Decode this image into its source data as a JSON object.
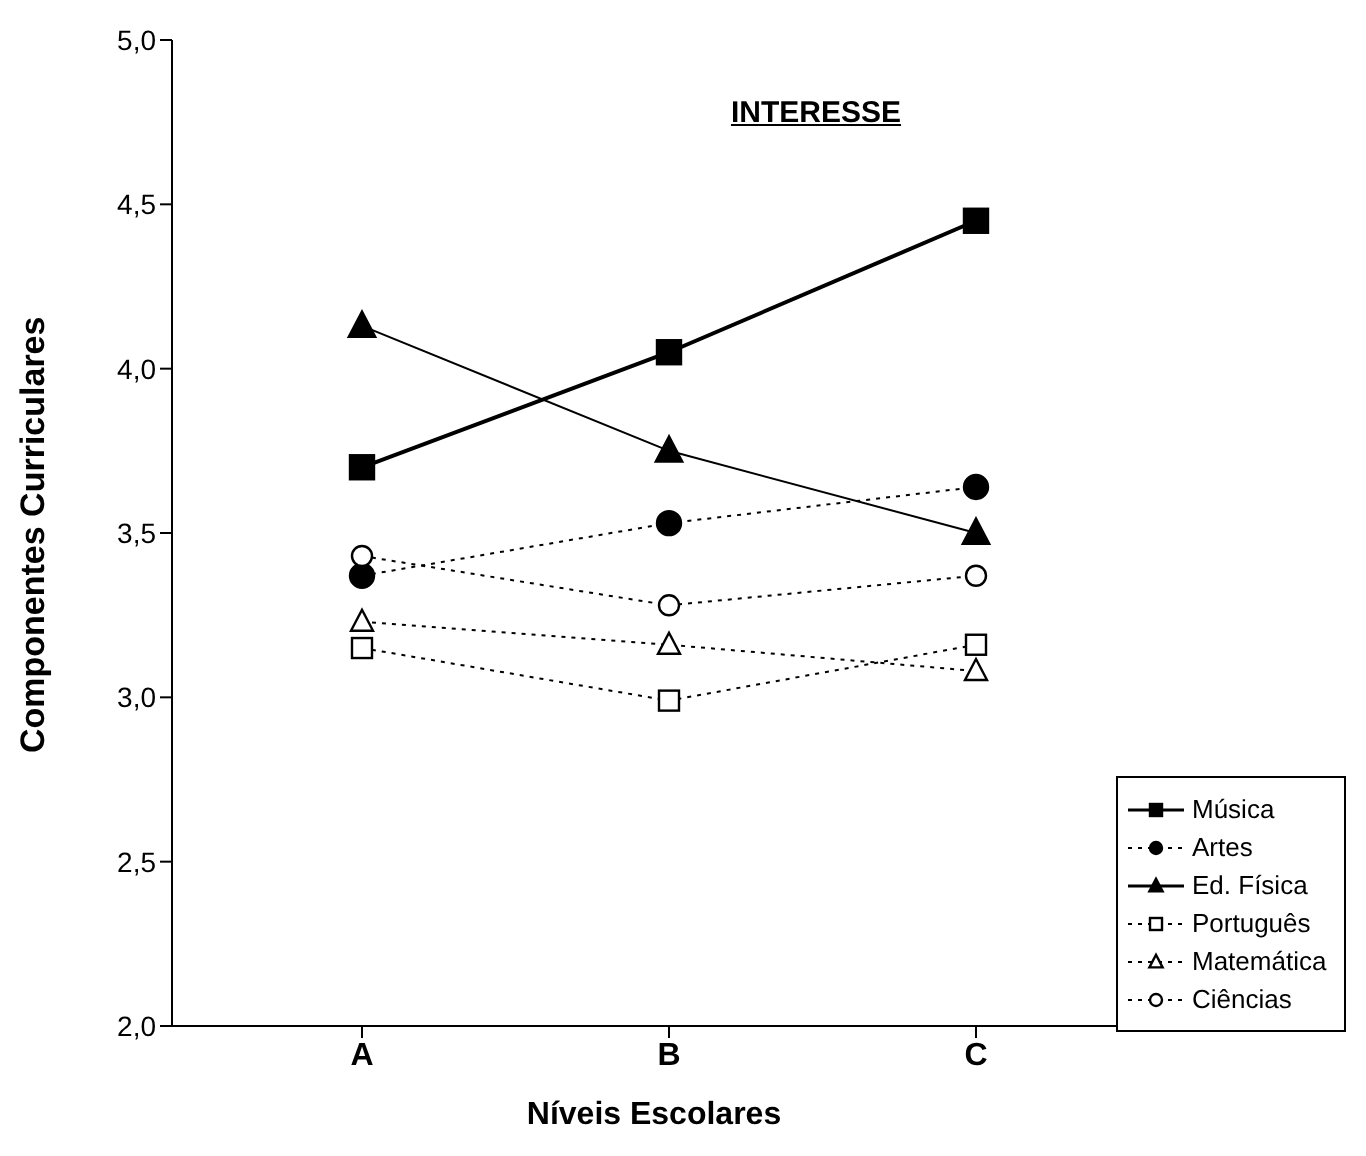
{
  "chart_data": {
    "type": "line",
    "title": "INTERESSE",
    "xlabel": "Níveis Escolares",
    "ylabel": "Componentes Curriculares",
    "categories": [
      "A",
      "B",
      "C"
    ],
    "series": [
      {
        "name": "Música",
        "color": "#000000",
        "values": [
          3.7,
          4.05,
          4.45
        ],
        "marker": "square",
        "line_style": "solid"
      },
      {
        "name": "Artes",
        "color": "#000000",
        "values": [
          3.37,
          3.53,
          3.64
        ],
        "marker": "circle",
        "line_style": "dotted"
      },
      {
        "name": "Ed. Física",
        "color": "#000000",
        "values": [
          4.13,
          3.75,
          3.5
        ],
        "marker": "triangle",
        "line_style": "solid"
      },
      {
        "name": "Português",
        "color": "#000000",
        "values": [
          3.15,
          2.99,
          3.16
        ],
        "marker": "square-open",
        "line_style": "dotted"
      },
      {
        "name": "Matemática",
        "color": "#000000",
        "values": [
          3.23,
          3.16,
          3.08
        ],
        "marker": "triangle-open",
        "line_style": "dotted"
      },
      {
        "name": "Ciências",
        "color": "#000000",
        "values": [
          3.43,
          3.28,
          3.37
        ],
        "marker": "circle-open",
        "line_style": "dotted"
      }
    ],
    "ylim": [
      2.0,
      5.0
    ],
    "yticks": [
      {
        "value": 2.0,
        "label": "2,0"
      },
      {
        "value": 2.5,
        "label": "2,5"
      },
      {
        "value": 3.0,
        "label": "3,0"
      },
      {
        "value": 3.5,
        "label": "3,5"
      },
      {
        "value": 4.0,
        "label": "4,0"
      },
      {
        "value": 4.5,
        "label": "4,5"
      },
      {
        "value": 5.0,
        "label": "5,0"
      }
    ],
    "grid": false,
    "legend": "bottom right"
  }
}
